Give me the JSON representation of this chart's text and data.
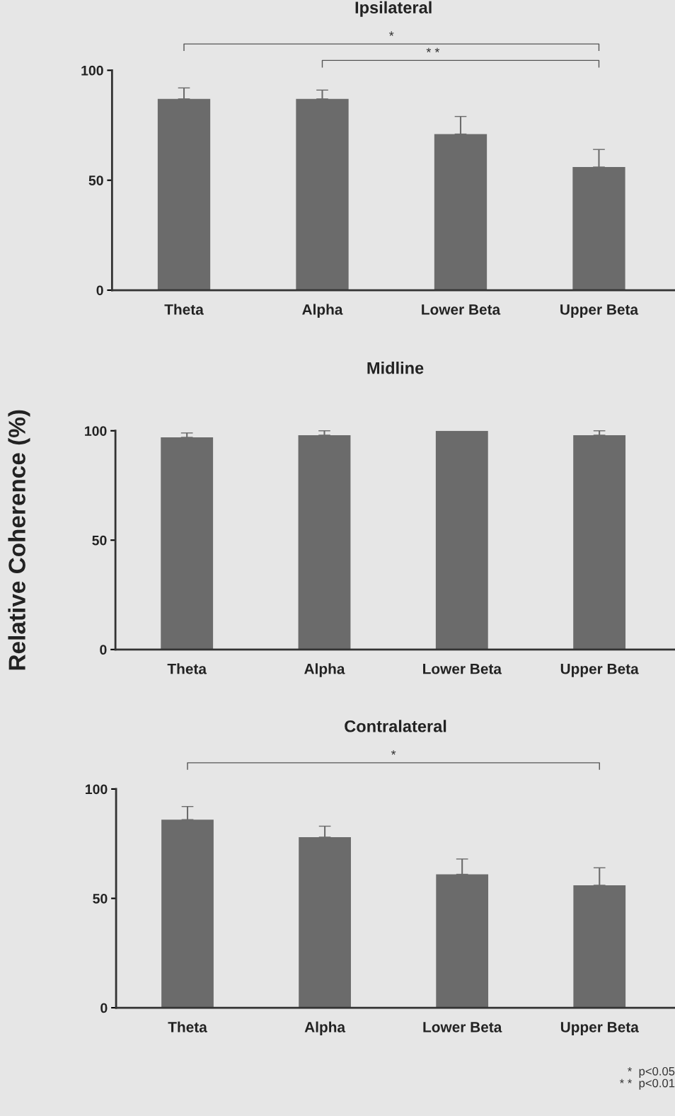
{
  "chart_data": [
    {
      "type": "bar",
      "title": "Ipsilateral",
      "categories": [
        "Theta",
        "Alpha",
        "Lower Beta",
        "Upper Beta"
      ],
      "values": [
        87,
        87,
        71,
        56
      ],
      "errors": [
        [
          87,
          92
        ],
        [
          87,
          91
        ],
        [
          71,
          79
        ],
        [
          56,
          64
        ]
      ],
      "color": "#6b6b6b",
      "ylim": [
        0,
        100
      ],
      "yticks": [
        0,
        50,
        100
      ],
      "grid": false,
      "annotations": [
        "*",
        "* *"
      ]
    },
    {
      "type": "bar",
      "title": "Midline",
      "ylabel": "Relative Coherence (%)",
      "categories": [
        "Theta",
        "Alpha",
        "Lower Beta",
        "Upper Beta"
      ],
      "values": [
        97,
        98,
        100,
        98
      ],
      "errors": [
        [
          97,
          99
        ],
        [
          98,
          100
        ],
        null,
        [
          98,
          100
        ]
      ],
      "color": "#6b6b6b",
      "ylim": [
        0,
        100
      ],
      "yticks": [
        0,
        50,
        100
      ],
      "grid": false
    },
    {
      "type": "bar",
      "title": "Contralateral",
      "categories": [
        "Theta",
        "Alpha",
        "Lower Beta",
        "Upper Beta"
      ],
      "values": [
        86,
        78,
        61,
        56
      ],
      "errors": [
        [
          86,
          92
        ],
        [
          78,
          83
        ],
        [
          61,
          68
        ],
        [
          56,
          64
        ]
      ],
      "color": "#6b6b6b",
      "ylim": [
        0,
        100
      ],
      "yticks": [
        0,
        50,
        100
      ],
      "grid": false,
      "annotations": [
        "*",
        {
          "text": "*  p<0.05\n* *  p<0.01"
        }
      ]
    }
  ]
}
